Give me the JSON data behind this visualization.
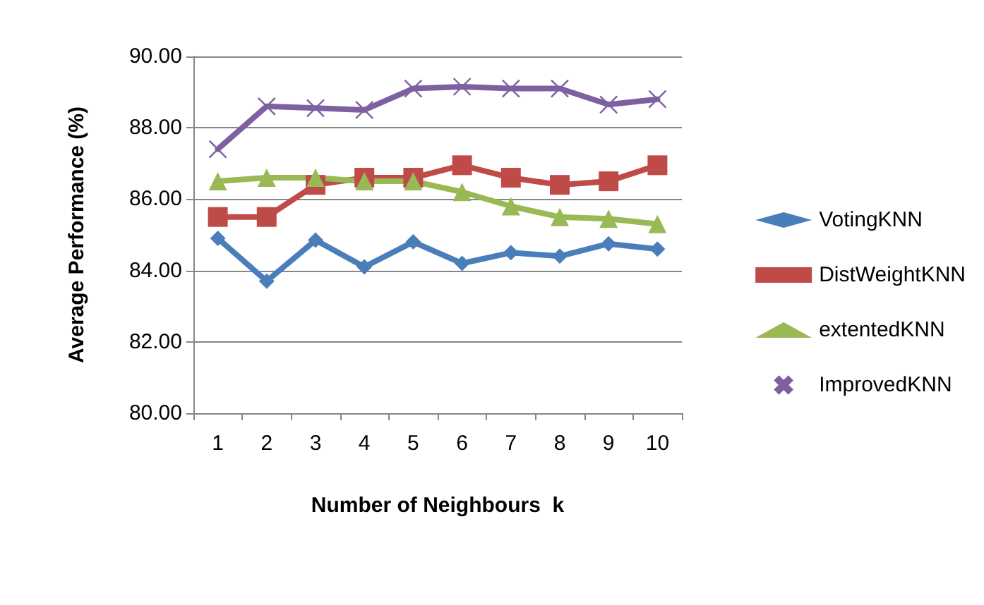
{
  "chart_data": {
    "type": "line",
    "xlabel": "Number of Neighbours  k",
    "ylabel": "Average Performance (%)",
    "categories": [
      "1",
      "2",
      "3",
      "4",
      "5",
      "6",
      "7",
      "8",
      "9",
      "10"
    ],
    "series": [
      {
        "name": "VotingKNN",
        "color": "#4a7ebb",
        "marker": "diamond",
        "values": [
          84.9,
          83.7,
          84.85,
          84.1,
          84.8,
          84.2,
          84.5,
          84.4,
          84.75,
          84.6
        ]
      },
      {
        "name": "DistWeightKNN",
        "color": "#be4b48",
        "marker": "square",
        "values": [
          85.5,
          85.5,
          86.4,
          86.6,
          86.6,
          86.95,
          86.6,
          86.4,
          86.5,
          86.95
        ]
      },
      {
        "name": "extentedKNN",
        "color": "#98b954",
        "marker": "triangle",
        "values": [
          86.5,
          86.6,
          86.6,
          86.5,
          86.5,
          86.2,
          85.8,
          85.5,
          85.45,
          85.3
        ]
      },
      {
        "name": "ImprovedKNN",
        "color": "#7d60a0",
        "marker": "cross",
        "values": [
          87.4,
          88.6,
          88.55,
          88.5,
          89.1,
          89.15,
          89.1,
          89.1,
          88.65,
          88.8
        ]
      }
    ],
    "ylim": [
      80,
      90
    ],
    "yticks": [
      {
        "value": 80,
        "label": "80.00"
      },
      {
        "value": 82,
        "label": "82.00"
      },
      {
        "value": 84,
        "label": "84.00"
      },
      {
        "value": 86,
        "label": "86.00"
      },
      {
        "value": 88,
        "label": "88.00"
      },
      {
        "value": 90,
        "label": "90.00"
      }
    ],
    "grid": "y",
    "legend": "right",
    "line_style": "solid"
  }
}
